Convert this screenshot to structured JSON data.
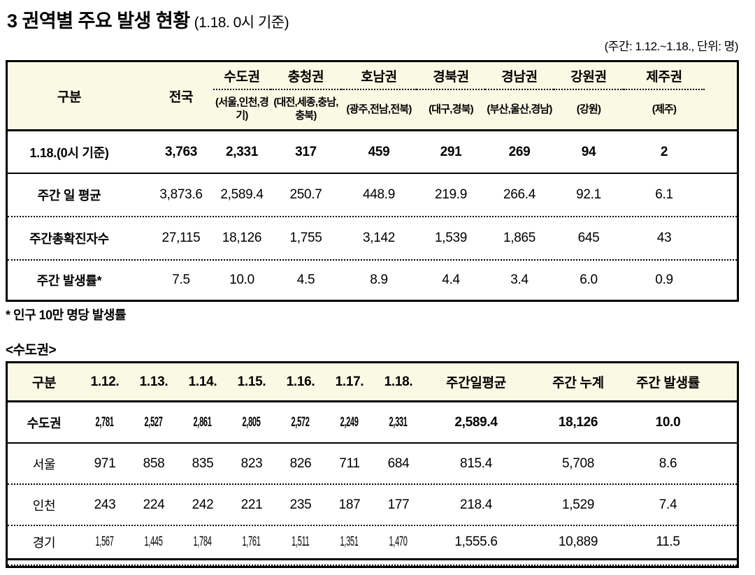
{
  "page": {
    "title": "3 권역별 주요 발생 현황",
    "title_suffix": "(1.18. 0시 기준)",
    "unit_note": "(주간: 1.12.~1.18., 단위: 명)",
    "footnote": "* 인구 10만 명당 발생률",
    "section_label": "<수도권>"
  },
  "colors": {
    "header_background": "#faf9e4",
    "border": "#000000"
  },
  "region_table": {
    "corner_label": "구분",
    "columns": [
      {
        "name": "전국",
        "sub": ""
      },
      {
        "name": "수도권",
        "sub": "(서울,인천,경기)"
      },
      {
        "name": "충청권",
        "sub": "(대전,세종,충남,충북)"
      },
      {
        "name": "호남권",
        "sub": "(광주,전남,전북)"
      },
      {
        "name": "경북권",
        "sub": "(대구,경북)"
      },
      {
        "name": "경남권",
        "sub": "(부산,울산,경남)"
      },
      {
        "name": "강원권",
        "sub": "(강원)"
      },
      {
        "name": "제주권",
        "sub": "(제주)"
      }
    ],
    "rows": [
      {
        "label": "1.18.(0시 기준)",
        "bold": true,
        "values": [
          "3,763",
          "2,331",
          "317",
          "459",
          "291",
          "269",
          "94",
          "2"
        ]
      },
      {
        "label": "주간 일 평균",
        "bold": false,
        "values": [
          "3,873.6",
          "2,589.4",
          "250.7",
          "448.9",
          "219.9",
          "266.4",
          "92.1",
          "6.1"
        ]
      },
      {
        "label": "주간총확진자수",
        "bold": false,
        "values": [
          "27,115",
          "18,126",
          "1,755",
          "3,142",
          "1,539",
          "1,865",
          "645",
          "43"
        ]
      },
      {
        "label": "주간 발생률*",
        "bold": false,
        "values": [
          "7.5",
          "10.0",
          "4.5",
          "8.9",
          "4.4",
          "3.4",
          "6.0",
          "0.9"
        ]
      }
    ]
  },
  "capital_table": {
    "headers": [
      "구분",
      "1.12.",
      "1.13.",
      "1.14.",
      "1.15.",
      "1.16.",
      "1.17.",
      "1.18.",
      "주간일평균",
      "주간 누계",
      "주간 발생률"
    ],
    "rows": [
      {
        "label": "수도권",
        "bold": true,
        "daily": [
          "2,781",
          "2,527",
          "2,861",
          "2,805",
          "2,572",
          "2,249",
          "2,331"
        ],
        "avg": "2,589.4",
        "total": "18,126",
        "rate": "10.0"
      },
      {
        "label": "서울",
        "bold": false,
        "daily": [
          "971",
          "858",
          "835",
          "823",
          "826",
          "711",
          "684"
        ],
        "avg": "815.4",
        "total": "5,708",
        "rate": "8.6"
      },
      {
        "label": "인천",
        "bold": false,
        "daily": [
          "243",
          "224",
          "242",
          "221",
          "235",
          "187",
          "177"
        ],
        "avg": "218.4",
        "total": "1,529",
        "rate": "7.4"
      },
      {
        "label": "경기",
        "bold": false,
        "daily": [
          "1,567",
          "1,445",
          "1,784",
          "1,761",
          "1,511",
          "1,351",
          "1,470"
        ],
        "avg": "1,555.6",
        "total": "10,889",
        "rate": "11.5"
      }
    ]
  }
}
